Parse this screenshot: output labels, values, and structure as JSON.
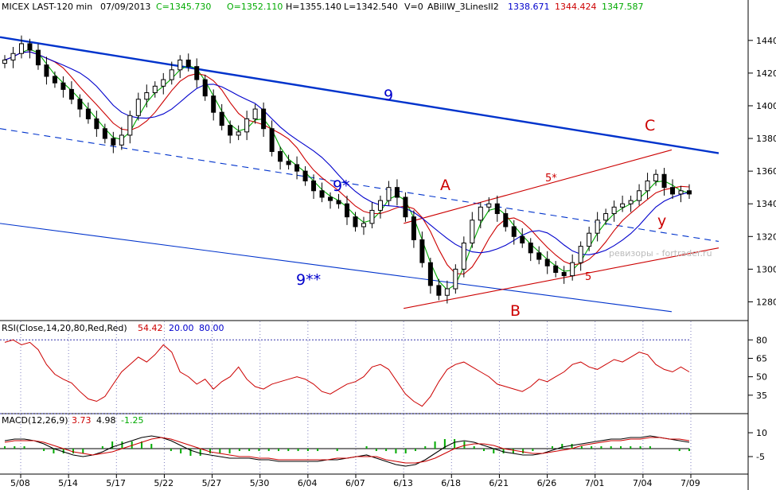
{
  "header": {
    "instrument": "MICEX LAST-120 min",
    "date": "07/09/2013",
    "close": "C=1345.730",
    "open": "O=1352.110",
    "high": "H=1355.140",
    "low": "L=1342.540",
    "volume": "V=0",
    "indicator_name": "ABillW_3LinesII2",
    "ind_blue": "1338.671",
    "ind_red": "1344.424",
    "ind_green": "1347.587"
  },
  "rsi_header": {
    "label": "RSI(Close,14,20,80,Red,Red)",
    "value": "54.42",
    "low": "20.00",
    "high": "80.00"
  },
  "macd_header": {
    "label": "MACD(12,26,9)",
    "macd": "3.73",
    "signal": "4.98",
    "hist": "-1.25"
  },
  "watermark": "ревизоры - fortrader.ru",
  "chart_data": [
    {
      "type": "candlestick",
      "title": "MICEX LAST-120 min",
      "x_tick_labels": [
        "5/08",
        "5/14",
        "5/17",
        "5/22",
        "5/27",
        "5/30",
        "6/04",
        "6/07",
        "6/13",
        "6/18",
        "6/21",
        "6/26",
        "7/01",
        "7/04",
        "7/09"
      ],
      "y_ticks": [
        1280,
        1300,
        1320,
        1340,
        1360,
        1380,
        1400,
        1420,
        1440
      ],
      "ylim": [
        1270,
        1455
      ],
      "close_series_approx": [
        1428,
        1432,
        1438,
        1434,
        1425,
        1418,
        1414,
        1410,
        1404,
        1398,
        1392,
        1386,
        1380,
        1376,
        1382,
        1394,
        1404,
        1408,
        1412,
        1416,
        1422,
        1428,
        1424,
        1416,
        1406,
        1396,
        1388,
        1382,
        1384,
        1392,
        1398,
        1386,
        1372,
        1366,
        1364,
        1360,
        1354,
        1348,
        1344,
        1342,
        1340,
        1332,
        1326,
        1328,
        1336,
        1342,
        1350,
        1344,
        1332,
        1318,
        1304,
        1290,
        1284,
        1288,
        1300,
        1316,
        1330,
        1338,
        1340,
        1334,
        1326,
        1320,
        1316,
        1310,
        1306,
        1302,
        1298,
        1296,
        1304,
        1314,
        1322,
        1330,
        1334,
        1338,
        1340,
        1342,
        1348,
        1354,
        1358,
        1350,
        1346,
        1348,
        1346
      ],
      "annotations": [
        {
          "text": "9",
          "color": "#0000cc"
        },
        {
          "text": "9*",
          "color": "#0000cc"
        },
        {
          "text": "9**",
          "color": "#0000cc"
        },
        {
          "text": "5*",
          "color": "#cc0000"
        },
        {
          "text": "5",
          "color": "#cc0000"
        },
        {
          "text": "A",
          "color": "#cc0000"
        },
        {
          "text": "B",
          "color": "#cc0000"
        },
        {
          "text": "C",
          "color": "#cc0000"
        },
        {
          "text": "y",
          "color": "#cc0000"
        }
      ],
      "lines": [
        {
          "name": "9",
          "color": "#0033cc",
          "style": "solid",
          "from": [
            "5/08",
            1442
          ],
          "to": [
            "7/09",
            1371
          ]
        },
        {
          "name": "9*",
          "color": "#0033cc",
          "style": "dashed",
          "from": [
            "5/08",
            1386
          ],
          "to": [
            "7/09",
            1317
          ]
        },
        {
          "name": "9**",
          "color": "#0033cc",
          "style": "solid",
          "from": [
            "5/08",
            1328
          ],
          "to": [
            "7/07",
            1274
          ]
        },
        {
          "name": "5*",
          "color": "#cc0000",
          "style": "solid",
          "from": [
            "6/13",
            1328
          ],
          "to": [
            "7/07",
            1373
          ]
        },
        {
          "name": "5",
          "color": "#cc0000",
          "style": "solid",
          "from": [
            "6/13",
            1276
          ],
          "to": [
            "7/09",
            1313
          ]
        }
      ],
      "colors": {
        "candles": "#000000",
        "ma_green": "#00aa00",
        "ma_red": "#cc0000",
        "ma_blue": "#0000cc"
      }
    },
    {
      "type": "line",
      "title": "RSI(Close,14,20,80,Red,Red)",
      "y_ticks": [
        35,
        50,
        65,
        80
      ],
      "ylim": [
        20,
        86
      ],
      "levels": [
        20,
        80
      ],
      "values": [
        78,
        80,
        76,
        78,
        72,
        60,
        52,
        48,
        45,
        38,
        32,
        30,
        34,
        44,
        54,
        60,
        66,
        62,
        68,
        76,
        70,
        54,
        50,
        44,
        48,
        40,
        46,
        50,
        58,
        48,
        42,
        40,
        44,
        46,
        48,
        50,
        48,
        44,
        38,
        36,
        40,
        44,
        46,
        50,
        58,
        60,
        56,
        46,
        36,
        30,
        26,
        34,
        46,
        56,
        60,
        62,
        58,
        54,
        50,
        44,
        42,
        40,
        38,
        42,
        48,
        46,
        50,
        54,
        60,
        62,
        58,
        56,
        60,
        64,
        62,
        66,
        70,
        68,
        60,
        56,
        54,
        58,
        54
      ],
      "color": "#cc0000"
    },
    {
      "type": "line",
      "title": "MACD(12,26,9)",
      "y_ticks": [
        -5,
        10
      ],
      "ylim": [
        -15,
        15
      ],
      "series": [
        {
          "values": [
            5,
            6,
            6,
            5,
            3,
            0,
            -2,
            -4,
            -5,
            -4,
            -2,
            1,
            3,
            5,
            7,
            8,
            7,
            5,
            2,
            -1,
            -3,
            -4,
            -5,
            -6,
            -6,
            -6,
            -7,
            -7,
            -8,
            -8,
            -8,
            -8,
            -8,
            -7,
            -7,
            -6,
            -5,
            -4,
            -6,
            -8,
            -10,
            -11,
            -10,
            -7,
            -3,
            1,
            4,
            5,
            4,
            2,
            0,
            -2,
            -3,
            -4,
            -4,
            -3,
            -1,
            1,
            2,
            3,
            4,
            5,
            6,
            6,
            7,
            7,
            8,
            7,
            6,
            5,
            4
          ]
        },
        {
          "values": [
            4,
            5,
            5,
            5,
            4,
            2,
            0,
            -2,
            -3,
            -4,
            -3,
            -2,
            0,
            2,
            4,
            6,
            7,
            6,
            4,
            2,
            0,
            -2,
            -3,
            -4,
            -5,
            -5,
            -6,
            -6,
            -7,
            -7,
            -7,
            -7,
            -7,
            -7,
            -6,
            -6,
            -5,
            -5,
            -5,
            -7,
            -8,
            -9,
            -9,
            -8,
            -6,
            -3,
            0,
            2,
            3,
            3,
            2,
            0,
            -1,
            -2,
            -3,
            -3,
            -2,
            -1,
            0,
            2,
            3,
            4,
            5,
            5,
            6,
            6,
            7,
            7,
            6,
            6,
            5
          ]
        }
      ],
      "colors": [
        "#000000",
        "#cc0000"
      ],
      "hist_color": "#00aa00"
    }
  ]
}
